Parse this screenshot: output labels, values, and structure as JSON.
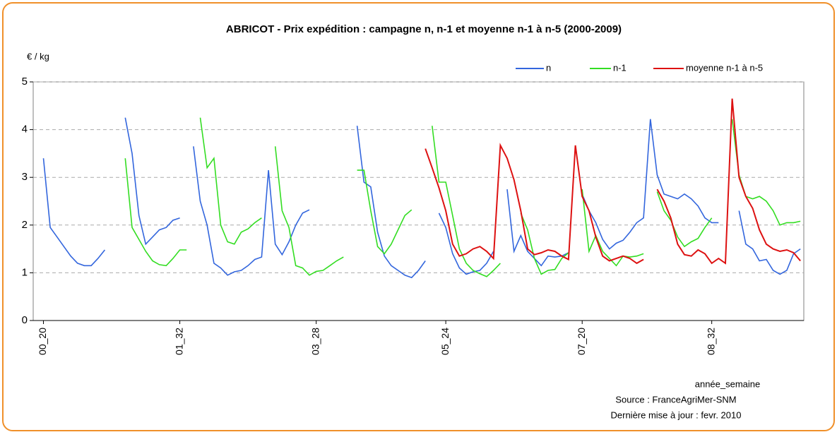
{
  "chart_data": {
    "type": "line",
    "title": "ABRICOT - Prix expédition : campagne n, n-1 et moyenne n-1 à n-5 (2000-2009)",
    "y_label": "€ / kg",
    "x_label": "année_semaine",
    "source": "Source : FranceAgriMer-SNM",
    "update": "Dernière mise à jour : fevr. 2010",
    "ylim": [
      0,
      5
    ],
    "yticks": [
      0,
      1,
      2,
      3,
      4,
      5
    ],
    "grid": true,
    "legend": "top-right",
    "categories": [
      null,
      "00_20",
      null,
      null,
      null,
      null,
      null,
      null,
      null,
      null,
      null,
      null,
      null,
      null,
      null,
      null,
      null,
      null,
      null,
      null,
      null,
      "01_32",
      null,
      null,
      null,
      null,
      null,
      null,
      null,
      null,
      null,
      null,
      null,
      null,
      null,
      null,
      null,
      null,
      null,
      null,
      null,
      "03_28",
      null,
      null,
      null,
      null,
      null,
      null,
      null,
      null,
      null,
      null,
      null,
      null,
      null,
      null,
      null,
      null,
      null,
      null,
      "05_24",
      null,
      null,
      null,
      null,
      null,
      null,
      null,
      null,
      null,
      null,
      null,
      null,
      null,
      null,
      null,
      null,
      null,
      null,
      null,
      "07_20",
      null,
      null,
      null,
      null,
      null,
      null,
      null,
      null,
      null,
      null,
      null,
      null,
      null,
      null,
      null,
      null,
      null,
      null,
      "08_32",
      null,
      null,
      null,
      null,
      null,
      null,
      null,
      null,
      null,
      null,
      null,
      null,
      null
    ],
    "series": [
      {
        "name": "n",
        "color": "#3366dd",
        "values": [
          null,
          3.4,
          1.95,
          1.75,
          1.55,
          1.35,
          1.2,
          1.15,
          1.15,
          1.3,
          1.48,
          null,
          null,
          4.25,
          3.5,
          2.2,
          1.6,
          1.75,
          1.9,
          1.95,
          2.1,
          2.15,
          null,
          3.65,
          2.5,
          2.0,
          1.2,
          1.1,
          0.95,
          1.02,
          1.05,
          1.15,
          1.28,
          1.33,
          3.15,
          1.6,
          1.38,
          1.65,
          2.0,
          2.25,
          2.32,
          null,
          null,
          null,
          null,
          null,
          null,
          4.08,
          2.9,
          2.8,
          1.85,
          1.35,
          1.15,
          1.05,
          0.95,
          0.9,
          1.05,
          1.25,
          null,
          2.25,
          1.95,
          1.4,
          1.1,
          0.97,
          1.02,
          1.05,
          1.2,
          1.45,
          null,
          2.75,
          1.45,
          1.78,
          1.45,
          1.3,
          1.15,
          1.35,
          1.33,
          1.35,
          1.42,
          null,
          2.65,
          2.3,
          2.05,
          1.7,
          1.5,
          1.62,
          1.68,
          1.85,
          2.05,
          2.15,
          4.22,
          3.05,
          2.65,
          2.6,
          2.55,
          2.65,
          2.55,
          2.4,
          2.15,
          2.05,
          2.05,
          null,
          null,
          2.3,
          1.6,
          1.5,
          1.25,
          1.28,
          1.05,
          0.97,
          1.05,
          1.4,
          1.5
        ]
      },
      {
        "name": "n-1",
        "color": "#33dd22",
        "values": [
          null,
          null,
          null,
          null,
          null,
          null,
          null,
          null,
          null,
          null,
          null,
          null,
          null,
          3.4,
          1.95,
          1.7,
          1.45,
          1.25,
          1.17,
          1.15,
          1.3,
          1.48,
          1.48,
          null,
          4.25,
          3.2,
          3.4,
          2.0,
          1.65,
          1.6,
          1.85,
          1.92,
          2.05,
          2.15,
          null,
          3.65,
          2.3,
          1.95,
          1.15,
          1.1,
          0.95,
          1.03,
          1.05,
          1.15,
          1.25,
          1.33,
          null,
          3.15,
          3.15,
          2.3,
          1.55,
          1.4,
          1.6,
          1.9,
          2.2,
          2.32,
          null,
          null,
          4.08,
          2.9,
          2.9,
          2.2,
          1.5,
          1.2,
          1.05,
          0.98,
          0.92,
          1.05,
          1.2,
          null,
          null,
          2.25,
          1.9,
          1.3,
          0.97,
          1.05,
          1.07,
          1.3,
          1.42,
          null,
          2.75,
          1.45,
          1.78,
          1.45,
          1.3,
          1.15,
          1.35,
          1.33,
          1.35,
          1.4,
          null,
          2.7,
          2.3,
          2.1,
          1.75,
          1.55,
          1.65,
          1.72,
          1.95,
          2.15,
          null,
          null,
          4.22,
          3.05,
          2.6,
          2.55,
          2.6,
          2.5,
          2.3,
          2.0,
          2.05,
          2.05,
          2.08
        ]
      },
      {
        "name": "moyenne n-1 à n-5",
        "color": "#dd1111",
        "values": [
          null,
          null,
          null,
          null,
          null,
          null,
          null,
          null,
          null,
          null,
          null,
          null,
          null,
          null,
          null,
          null,
          null,
          null,
          null,
          null,
          null,
          null,
          null,
          null,
          null,
          null,
          null,
          null,
          null,
          null,
          null,
          null,
          null,
          null,
          null,
          null,
          null,
          null,
          null,
          null,
          null,
          null,
          null,
          null,
          null,
          null,
          null,
          null,
          null,
          null,
          null,
          null,
          null,
          null,
          null,
          null,
          null,
          3.6,
          3.2,
          2.78,
          2.3,
          1.6,
          1.35,
          1.4,
          1.5,
          1.55,
          1.45,
          1.3,
          3.67,
          3.4,
          2.95,
          2.3,
          1.5,
          1.38,
          1.42,
          1.48,
          1.45,
          1.35,
          1.28,
          3.67,
          2.6,
          2.3,
          1.75,
          1.35,
          1.25,
          1.3,
          1.35,
          1.3,
          1.2,
          1.28,
          null,
          2.75,
          2.5,
          2.15,
          1.6,
          1.38,
          1.35,
          1.48,
          1.4,
          1.2,
          1.3,
          1.2,
          4.65,
          3.0,
          2.6,
          2.35,
          1.9,
          1.6,
          1.5,
          1.45,
          1.48,
          1.42,
          1.25
        ]
      }
    ]
  }
}
